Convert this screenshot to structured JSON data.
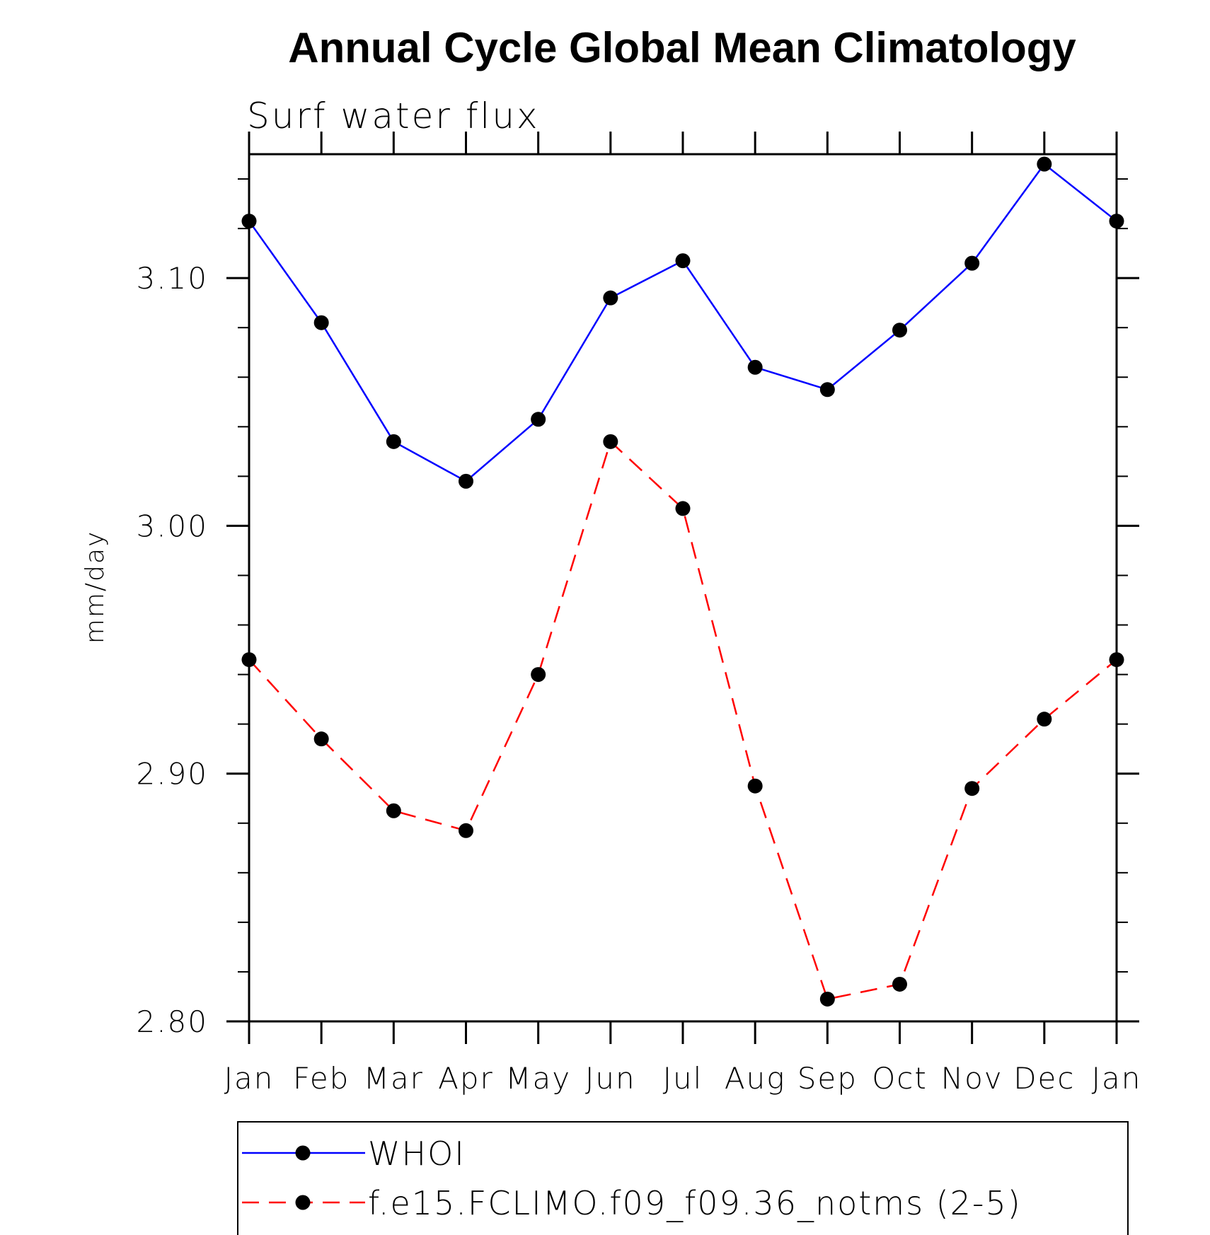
{
  "chart_data": {
    "type": "line",
    "title": "Annual Cycle Global Mean Climatology",
    "subtitle": "Surf water flux",
    "xlabel": "",
    "ylabel": "mm/day",
    "categories": [
      "Jan",
      "Feb",
      "Mar",
      "Apr",
      "May",
      "Jun",
      "Jul",
      "Aug",
      "Sep",
      "Oct",
      "Nov",
      "Dec",
      "Jan"
    ],
    "ylim": [
      2.8,
      3.15
    ],
    "yticks": [
      {
        "value": 2.8,
        "label": "2.80"
      },
      {
        "value": 2.9,
        "label": "2.90"
      },
      {
        "value": 3.0,
        "label": "3.00"
      },
      {
        "value": 3.1,
        "label": "3.10"
      }
    ],
    "minor_tick_step": 0.02,
    "grid": false,
    "legend_position": "bottom",
    "series": [
      {
        "name": "WHOI",
        "color": "#0000ff",
        "dashed": false,
        "values": [
          3.123,
          3.082,
          3.034,
          3.018,
          3.043,
          3.092,
          3.107,
          3.064,
          3.055,
          3.079,
          3.106,
          3.146,
          3.123
        ]
      },
      {
        "name": "f.e15.FCLIMO.f09_f09.36_notms (2-5)",
        "color": "#ff0000",
        "dashed": true,
        "values": [
          2.946,
          2.914,
          2.885,
          2.877,
          2.94,
          3.034,
          3.007,
          2.895,
          2.809,
          2.815,
          2.894,
          2.922,
          2.946
        ]
      }
    ]
  }
}
